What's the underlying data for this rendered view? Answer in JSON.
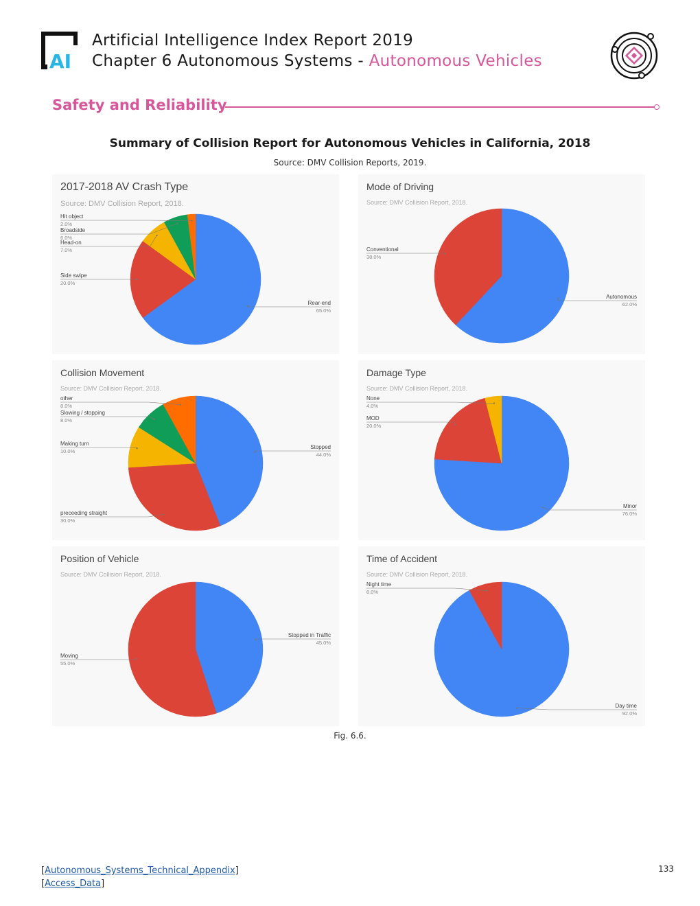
{
  "header": {
    "logo_text": "AI",
    "line1": "Artificial Intelligence Index Report 2019",
    "line2_prefix": "Chapter 6 Autonomous Systems - ",
    "line2_accent": "Autonomous Vehicles"
  },
  "section": {
    "title": "Safety and Reliability"
  },
  "figure": {
    "title": "Summary of Collision Report for Autonomous Vehicles in California, 2018",
    "source": "Source: DMV Collision Reports, 2019.",
    "caption": "Fig. 6.6."
  },
  "colors": {
    "blue": "#4285f4",
    "red": "#db4437",
    "yellow": "#f4b400",
    "green": "#0f9d58",
    "orange": "#ff6d01",
    "accent": "#d6589b"
  },
  "chart_data": [
    {
      "type": "pie",
      "title": "2017-2018 AV Crash Type",
      "source": "Source: DMV Collision Report, 2018.",
      "slices": [
        {
          "label": "Rear-end",
          "pct_text": "65.0%",
          "value": 65.0,
          "color": "#4285f4"
        },
        {
          "label": "Side swipe",
          "pct_text": "20.0%",
          "value": 20.0,
          "color": "#db4437"
        },
        {
          "label": "Head-on",
          "pct_text": "7.0%",
          "value": 7.0,
          "color": "#f4b400"
        },
        {
          "label": "Broadside",
          "pct_text": "6.0%",
          "value": 6.0,
          "color": "#0f9d58"
        },
        {
          "label": "Hit object",
          "pct_text": "2.0%",
          "value": 2.0,
          "color": "#ff6d01"
        }
      ]
    },
    {
      "type": "pie",
      "title": "Mode of Driving",
      "source": "Source: DMV Collision Report, 2018.",
      "slices": [
        {
          "label": "Autonomous",
          "pct_text": "62.0%",
          "value": 62.0,
          "color": "#4285f4"
        },
        {
          "label": "Conventional",
          "pct_text": "38.0%",
          "value": 38.0,
          "color": "#db4437"
        }
      ]
    },
    {
      "type": "pie",
      "title": "Collision Movement",
      "source": "Source: DMV Collision Report, 2018.",
      "slices": [
        {
          "label": "Stopped",
          "pct_text": "44.0%",
          "value": 44.0,
          "color": "#4285f4"
        },
        {
          "label": "preceeding straight",
          "pct_text": "30.0%",
          "value": 30.0,
          "color": "#db4437"
        },
        {
          "label": "Making turn",
          "pct_text": "10.0%",
          "value": 10.0,
          "color": "#f4b400"
        },
        {
          "label": "Slowing / stopping",
          "pct_text": "8.0%",
          "value": 8.0,
          "color": "#0f9d58"
        },
        {
          "label": "other",
          "pct_text": "8.0%",
          "value": 8.0,
          "color": "#ff6d01"
        }
      ]
    },
    {
      "type": "pie",
      "title": "Damage Type",
      "source": "Source: DMV Collision Report, 2018.",
      "slices": [
        {
          "label": "Minor",
          "pct_text": "76.0%",
          "value": 76.0,
          "color": "#4285f4"
        },
        {
          "label": "MOD",
          "pct_text": "20.0%",
          "value": 20.0,
          "color": "#db4437"
        },
        {
          "label": "None",
          "pct_text": "4.0%",
          "value": 4.0,
          "color": "#f4b400"
        }
      ]
    },
    {
      "type": "pie",
      "title": "Position of Vehicle",
      "source": "Source: DMV Collision Report, 2018.",
      "slices": [
        {
          "label": "Stopped in Traffic",
          "pct_text": "45.0%",
          "value": 45.0,
          "color": "#4285f4"
        },
        {
          "label": "Moving",
          "pct_text": "55.0%",
          "value": 55.0,
          "color": "#db4437"
        }
      ]
    },
    {
      "type": "pie",
      "title": "Time of Accident",
      "source": "Source: DMV Collision Report, 2018.",
      "slices": [
        {
          "label": "Day time",
          "pct_text": "92.0%",
          "value": 92.0,
          "color": "#4285f4"
        },
        {
          "label": "Night time",
          "pct_text": "8.0%",
          "value": 8.0,
          "color": "#db4437"
        }
      ]
    }
  ],
  "footer": {
    "link1": "Autonomous_Systems_Technical_Appendix",
    "link2": "Access_Data",
    "page_number": "133"
  }
}
